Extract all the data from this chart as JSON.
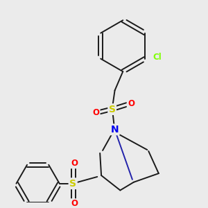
{
  "bg_color": "#ebebeb",
  "bond_color": "#1a1a1a",
  "atom_colors": {
    "N": "#0000ee",
    "S": "#cccc00",
    "O": "#ff0000",
    "Cl": "#7fff00"
  },
  "line_width": 1.4
}
